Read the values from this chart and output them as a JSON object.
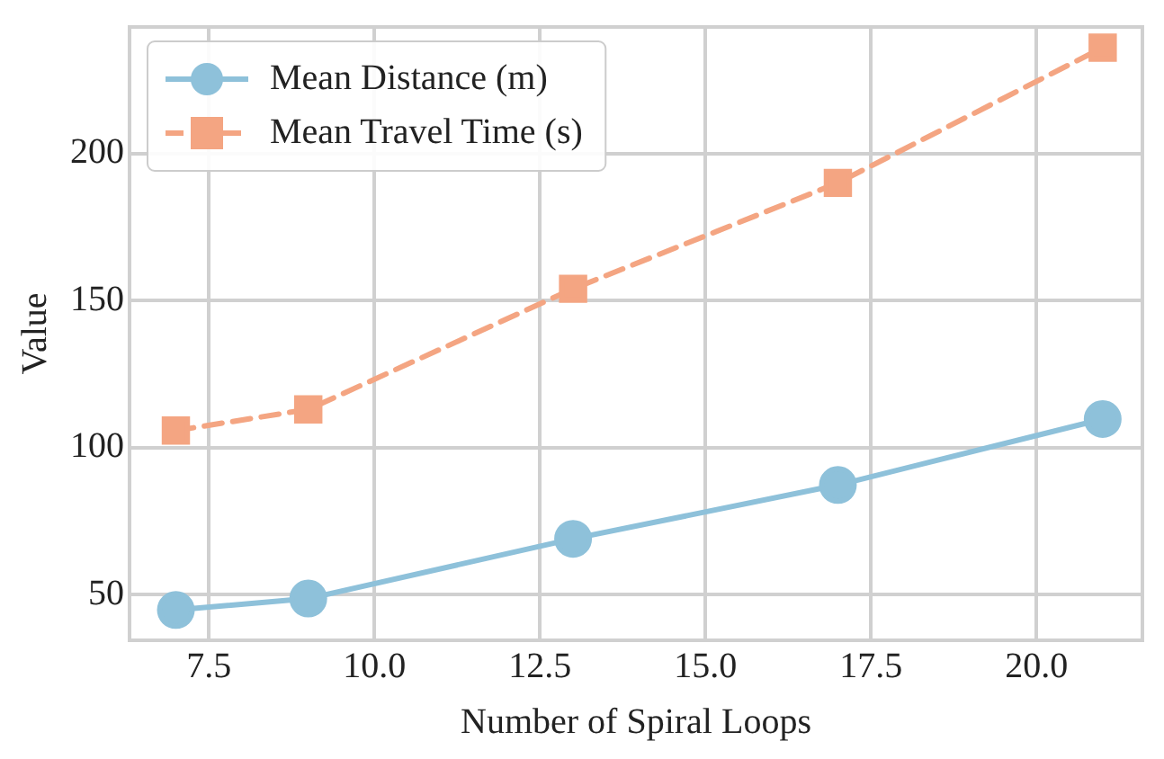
{
  "chart_data": {
    "type": "line",
    "xlabel": "Number of Spiral Loops",
    "ylabel": "Value",
    "x": [
      7,
      9,
      13,
      17,
      21
    ],
    "series": [
      {
        "name": "Mean Distance (m)",
        "color": "#8ec1da",
        "values": [
          44.8,
          48.7,
          69,
          87.3,
          109.7
        ],
        "marker": "circle",
        "line_style": "solid"
      },
      {
        "name": "Mean Travel Time (s)",
        "color": "#f4a582",
        "values": [
          105.8,
          113,
          154,
          190,
          236
        ],
        "marker": "square",
        "line_style": "dashed"
      }
    ],
    "xlim": [
      6.3,
      21.6
    ],
    "xticks": [
      {
        "value": 7.5,
        "label": "7.5"
      },
      {
        "value": 10,
        "label": "10.0"
      },
      {
        "value": 12.5,
        "label": "12.5"
      },
      {
        "value": 15,
        "label": "15.0"
      },
      {
        "value": 17.5,
        "label": "17.5"
      },
      {
        "value": 20,
        "label": "20.0"
      }
    ],
    "ylim": [
      34.5,
      243
    ],
    "yticks": [
      50,
      100,
      150,
      200
    ],
    "grid": true,
    "legend": "top left"
  }
}
